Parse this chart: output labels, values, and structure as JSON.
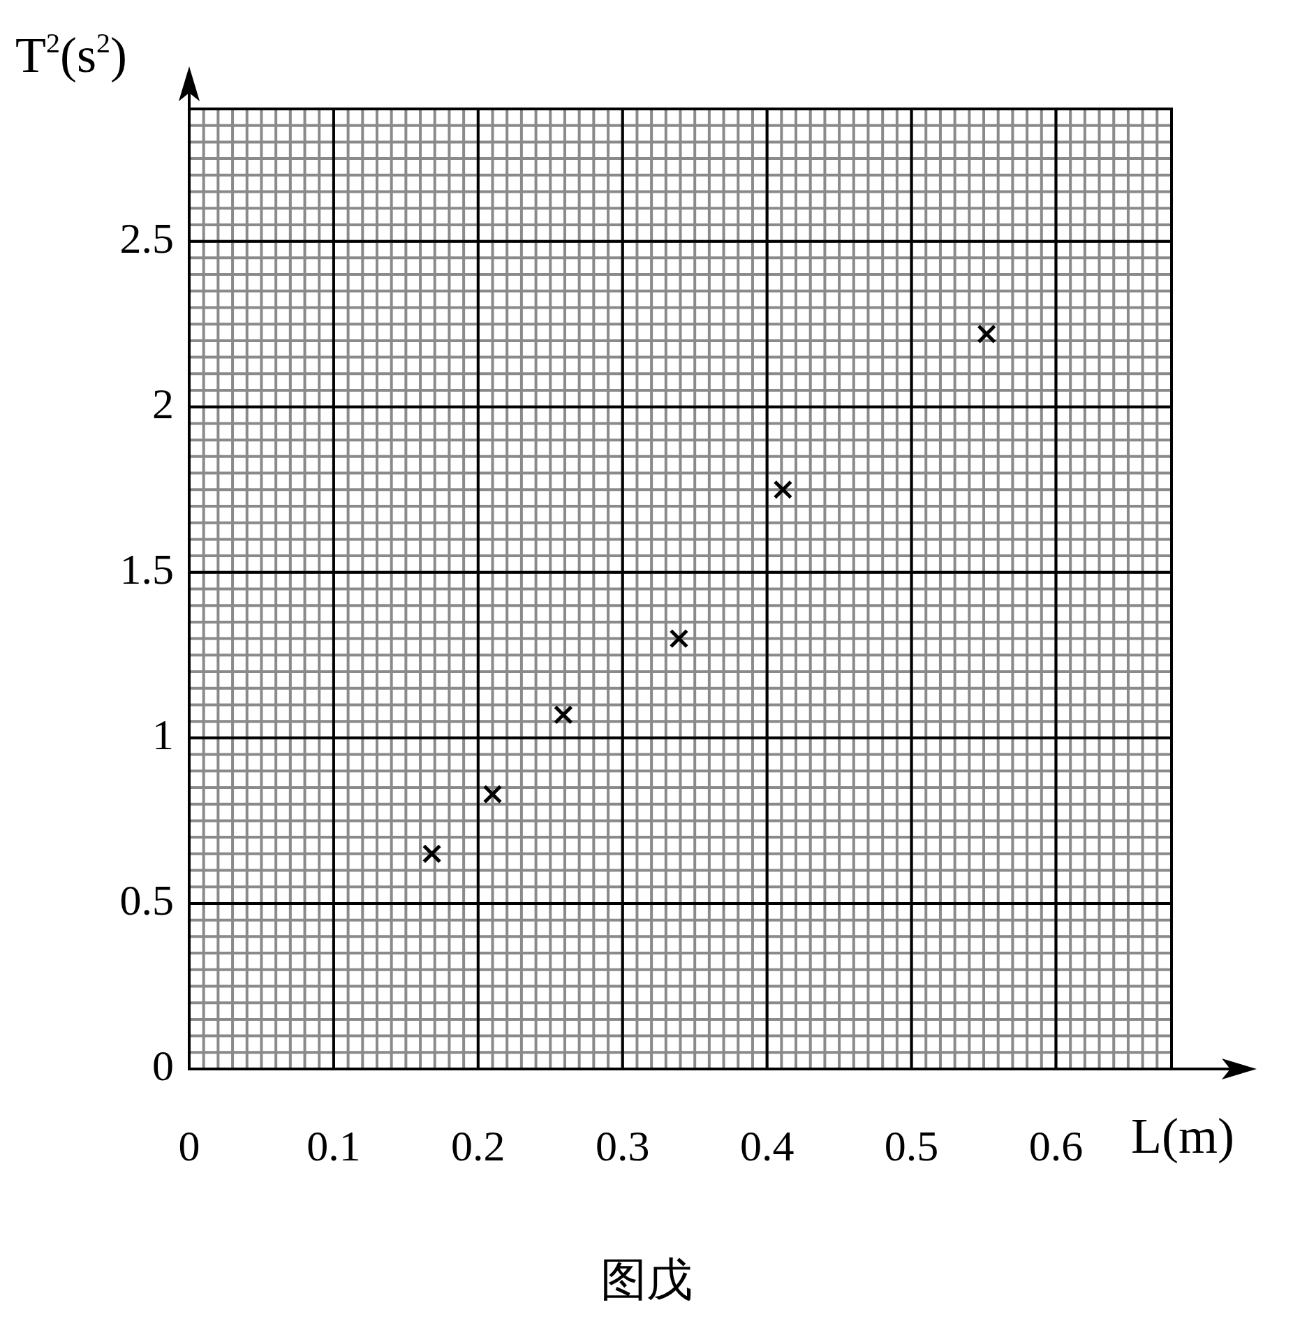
{
  "chart_data": {
    "type": "scatter",
    "xlabel": "L(m)",
    "ylabel": "T$^{2}$(s$^{2}$)",
    "annotations": [
      "图戊"
    ],
    "series": [
      {
        "color": "#000000",
        "x": [
          0.168,
          0.21,
          0.259,
          0.339,
          0.411,
          0.552
        ],
        "values": [
          0.65,
          0.83,
          1.07,
          1.3,
          1.75,
          2.22
        ]
      }
    ],
    "xlim": [
      0,
      0.68
    ],
    "xticks": [
      0,
      0.1,
      0.2,
      0.3,
      0.4,
      0.5,
      0.6
    ],
    "ylim": [
      0,
      2.9
    ],
    "yticks": [
      0,
      0.5,
      1,
      1.5,
      2,
      2.5
    ],
    "grid": true,
    "legend": false,
    "marker": "cross"
  }
}
